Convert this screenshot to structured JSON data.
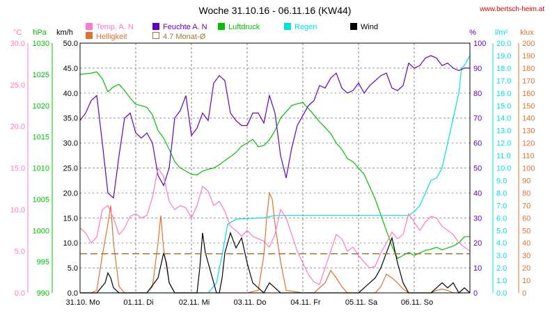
{
  "chart_data": {
    "type": "line",
    "title": "Woche 31.10.16 - 06.11.16 (KW44)",
    "source_label": "www.bertsch-heim.at",
    "x_range_days": [
      0,
      7
    ],
    "x_tick_labels": [
      "31.10. Mo",
      "01.11. Di",
      "02.11. Mi",
      "03.11. Do",
      "04.11. Fr",
      "05.11. Sa",
      "06.11. So"
    ],
    "grid": true,
    "axes": {
      "temperature": {
        "unit": "°C",
        "min": 0,
        "max": 30,
        "ticks": [
          "0.0",
          "5.0",
          "10.0",
          "15.0",
          "20.0",
          "25.0",
          "30.0"
        ],
        "color": "#ff78c8"
      },
      "pressure": {
        "unit": "hPa",
        "min": 990,
        "max": 1030,
        "ticks": [
          "990",
          "995",
          "1000",
          "1005",
          "1010",
          "1015",
          "1020",
          "1025",
          "1030"
        ],
        "color": "#00c000"
      },
      "wind": {
        "unit": "km/h",
        "min": 0,
        "max": 50,
        "ticks": [
          "0.0",
          "5.0",
          "10.0",
          "15.0",
          "20.0",
          "25.0",
          "30.0",
          "35.0",
          "40.0",
          "45.0",
          "50.0"
        ],
        "color": "#000000"
      },
      "humidity": {
        "unit": "%",
        "min": 0,
        "max": 100,
        "ticks": [
          "0",
          "10",
          "20",
          "30",
          "40",
          "50",
          "60",
          "70",
          "80",
          "90",
          "100"
        ],
        "color": "#6000c0"
      },
      "rain": {
        "unit": "l/m²",
        "min": 0,
        "max": 20,
        "ticks": [
          "0.0",
          "1.0",
          "2.0",
          "3.0",
          "4.0",
          "5.0",
          "6.0",
          "7.0",
          "8.0",
          "9.0",
          "10.0",
          "11.0",
          "12.0",
          "13.0",
          "14.0",
          "15.0",
          "16.0",
          "17.0",
          "18.0",
          "19.0",
          "20.0"
        ],
        "color": "#00e0e0"
      },
      "light": {
        "unit": "klux",
        "min": 0,
        "max": 200,
        "ticks": [
          "0",
          "10",
          "20",
          "30",
          "40",
          "50",
          "60",
          "70",
          "80",
          "90",
          "100",
          "110",
          "120",
          "130",
          "140",
          "150",
          "160",
          "170",
          "180",
          "190",
          "200"
        ],
        "color": "#e07030"
      }
    },
    "legend": [
      {
        "label": "Temp. A. N",
        "color": "#ff78c8"
      },
      {
        "label": "Helligkeit",
        "color": "#e07030"
      },
      {
        "label": "Feuchte A. N",
        "color": "#6000c0"
      },
      {
        "label": "4.7 Monat-Ø",
        "color": "#a07830"
      },
      {
        "label": "Luftdruck",
        "color": "#00c000"
      },
      {
        "label": "Regen",
        "color": "#00e0e0"
      },
      {
        "label": "Wind",
        "color": "#000000"
      }
    ],
    "series": [
      {
        "name": "Temp. A. N",
        "axis": "temperature",
        "color": "#ff78c8",
        "x": [
          0,
          0.1,
          0.2,
          0.3,
          0.4,
          0.5,
          0.6,
          0.7,
          0.8,
          0.9,
          1.0,
          1.1,
          1.2,
          1.3,
          1.4,
          1.5,
          1.6,
          1.7,
          1.8,
          1.9,
          2.0,
          2.1,
          2.2,
          2.3,
          2.4,
          2.5,
          2.6,
          2.7,
          2.8,
          2.9,
          3.0,
          3.1,
          3.2,
          3.3,
          3.4,
          3.5,
          3.6,
          3.7,
          3.8,
          3.9,
          4.0,
          4.1,
          4.2,
          4.3,
          4.4,
          4.5,
          4.6,
          4.7,
          4.8,
          4.9,
          5.0,
          5.1,
          5.2,
          5.3,
          5.4,
          5.5,
          5.6,
          5.7,
          5.8,
          5.9,
          6.0,
          6.1,
          6.2,
          6.3,
          6.4,
          6.5,
          6.6,
          6.7,
          6.8,
          6.9,
          7.0
        ],
        "y": [
          7.8,
          7.2,
          6.0,
          6.7,
          10.0,
          10.5,
          9.0,
          7.0,
          7.8,
          9.2,
          9.5,
          9.0,
          9.3,
          11.5,
          15.0,
          14.0,
          11.0,
          10.0,
          10.5,
          10.2,
          9.0,
          10.5,
          12.8,
          12.2,
          10.5,
          11.0,
          9.8,
          8.0,
          7.5,
          6.8,
          7.5,
          6.8,
          6.5,
          6.2,
          5.5,
          7.0,
          10.0,
          9.0,
          7.0,
          5.0,
          3.6,
          2.2,
          1.3,
          1.0,
          3.0,
          5.0,
          7.0,
          6.5,
          5.0,
          5.5,
          4.5,
          3.7,
          3.0,
          3.2,
          4.8,
          6.0,
          7.3,
          6.5,
          7.0,
          9.5,
          8.5,
          7.5,
          8.5,
          9.2,
          9.0,
          8.0,
          7.5,
          7.0,
          6.0,
          5.5,
          5.0
        ]
      },
      {
        "name": "Feuchte A. N",
        "axis": "humidity",
        "color": "#6000c0",
        "x": [
          0,
          0.1,
          0.2,
          0.3,
          0.4,
          0.5,
          0.6,
          0.7,
          0.8,
          0.9,
          1.0,
          1.1,
          1.2,
          1.3,
          1.4,
          1.5,
          1.6,
          1.7,
          1.8,
          1.9,
          2.0,
          2.1,
          2.2,
          2.3,
          2.4,
          2.5,
          2.6,
          2.7,
          2.8,
          2.9,
          3.0,
          3.1,
          3.2,
          3.3,
          3.4,
          3.5,
          3.6,
          3.7,
          3.8,
          3.9,
          4.0,
          4.1,
          4.2,
          4.3,
          4.4,
          4.5,
          4.6,
          4.7,
          4.8,
          4.9,
          5.0,
          5.1,
          5.2,
          5.3,
          5.4,
          5.5,
          5.6,
          5.7,
          5.8,
          5.9,
          6.0,
          6.1,
          6.2,
          6.3,
          6.4,
          6.5,
          6.6,
          6.7,
          6.8,
          6.9,
          7.0
        ],
        "y": [
          69,
          72,
          77,
          79,
          60,
          40,
          38,
          55,
          70,
          72,
          64,
          62,
          64,
          60,
          47,
          43,
          50,
          70,
          73,
          79,
          63,
          66,
          72,
          69,
          84,
          87,
          85,
          72,
          69,
          67,
          67,
          72,
          72,
          68,
          79,
          72,
          55,
          46,
          58,
          67,
          71,
          75,
          77,
          83,
          82,
          86,
          88,
          82,
          80,
          81,
          84,
          80,
          83,
          85,
          87,
          88,
          82,
          81,
          83,
          92,
          90,
          91,
          94,
          95,
          94,
          91,
          92,
          90,
          89,
          90,
          90
        ]
      },
      {
        "name": "Luftdruck",
        "axis": "pressure",
        "color": "#00c000",
        "x": [
          0,
          0.1,
          0.2,
          0.3,
          0.4,
          0.5,
          0.6,
          0.7,
          0.8,
          0.9,
          1.0,
          1.1,
          1.2,
          1.3,
          1.4,
          1.5,
          1.6,
          1.7,
          1.8,
          1.9,
          2.0,
          2.1,
          2.2,
          2.3,
          2.4,
          2.5,
          2.6,
          2.7,
          2.8,
          2.9,
          3.0,
          3.1,
          3.2,
          3.3,
          3.4,
          3.5,
          3.6,
          3.7,
          3.8,
          3.9,
          4.0,
          4.1,
          4.2,
          4.3,
          4.4,
          4.5,
          4.6,
          4.7,
          4.8,
          4.9,
          5.0,
          5.1,
          5.2,
          5.3,
          5.4,
          5.5,
          5.6,
          5.7,
          5.8,
          5.9,
          6.0,
          6.1,
          6.2,
          6.3,
          6.4,
          6.5,
          6.6,
          6.7,
          6.8,
          6.9,
          7.0
        ],
        "y": [
          1025.0,
          1025.1,
          1025.2,
          1025.4,
          1024.3,
          1022.2,
          1023.0,
          1023.4,
          1022.4,
          1021.2,
          1020.2,
          1020.0,
          1019.7,
          1018.5,
          1016.0,
          1014.8,
          1013.0,
          1011.0,
          1010.0,
          1009.5,
          1009.0,
          1008.9,
          1009.5,
          1009.8,
          1010.0,
          1010.5,
          1011.2,
          1011.8,
          1012.5,
          1013.5,
          1014.0,
          1014.6,
          1013.4,
          1013.6,
          1014.5,
          1016.0,
          1018.0,
          1019.0,
          1020.0,
          1020.3,
          1020.5,
          1019.5,
          1018.5,
          1017.4,
          1016.5,
          1015.5,
          1014.0,
          1013.0,
          1011.5,
          1011.0,
          1010.0,
          1009.0,
          1007.0,
          1005.0,
          1002.5,
          1000.0,
          997.5,
          995.5,
          996.0,
          996.5,
          996.0,
          996.4,
          996.8,
          997.0,
          997.3,
          996.9,
          997.2,
          997.5,
          998.0,
          999.0,
          999.0
        ]
      },
      {
        "name": "Regen",
        "axis": "rain",
        "color": "#00e0e0",
        "x": [
          0,
          2.3,
          2.45,
          2.55,
          2.65,
          2.8,
          3.0,
          3.3,
          3.5,
          4.0,
          4.5,
          5.0,
          5.5,
          5.9,
          6.0,
          6.1,
          6.2,
          6.3,
          6.4,
          6.5,
          6.6,
          6.7,
          6.8,
          6.85,
          6.9,
          7.0
        ],
        "y": [
          0,
          0,
          0.8,
          3.0,
          5.5,
          5.9,
          5.95,
          6.0,
          6.2,
          6.2,
          6.2,
          6.2,
          6.2,
          6.2,
          6.5,
          7.0,
          8.0,
          9.0,
          9.2,
          10.0,
          12.0,
          14.0,
          16.0,
          18.0,
          18.2,
          19.0
        ]
      },
      {
        "name": "Helligkeit",
        "axis": "light",
        "color": "#e07030",
        "x": [
          0,
          0.1,
          0.2,
          0.3,
          0.4,
          0.5,
          0.55,
          0.6,
          0.7,
          0.8,
          1.0,
          1.2,
          1.3,
          1.4,
          1.45,
          1.5,
          1.6,
          1.7,
          2.0,
          3.0,
          3.2,
          3.3,
          3.35,
          3.4,
          3.45,
          3.5,
          3.6,
          3.7,
          4.0,
          4.2,
          4.4,
          4.5,
          4.6,
          4.7,
          4.8,
          5.0,
          5.3,
          5.4,
          5.5,
          5.6,
          5.7,
          5.8,
          5.9,
          6.0,
          6.3,
          6.4,
          6.5,
          6.6,
          6.7,
          7.0
        ],
        "y": [
          0,
          0,
          0,
          2,
          30,
          55,
          70,
          40,
          5,
          0,
          0,
          0,
          5,
          40,
          62,
          35,
          8,
          0,
          0,
          0,
          2,
          30,
          60,
          80,
          75,
          55,
          25,
          2,
          0,
          0,
          8,
          18,
          12,
          5,
          0,
          0,
          0,
          5,
          15,
          12,
          8,
          3,
          0,
          0,
          0,
          2,
          3,
          2,
          0,
          0
        ]
      },
      {
        "name": "Wind",
        "axis": "wind",
        "color": "#000000",
        "x": [
          0,
          0.3,
          0.45,
          0.5,
          0.55,
          0.6,
          0.7,
          0.8,
          1.0,
          1.2,
          1.4,
          1.5,
          1.55,
          1.6,
          1.7,
          1.8,
          2.0,
          2.1,
          2.15,
          2.2,
          2.25,
          2.3,
          2.4,
          2.45,
          2.5,
          2.55,
          2.6,
          2.7,
          2.8,
          2.9,
          3.0,
          3.1,
          3.2,
          3.3,
          3.4,
          3.5,
          3.6,
          3.7,
          3.8,
          3.9,
          4.0,
          4.1,
          4.2,
          4.3,
          4.4,
          4.5,
          4.6,
          4.7,
          4.8,
          4.9,
          5.0,
          5.1,
          5.2,
          5.3,
          5.4,
          5.5,
          5.6,
          5.7,
          5.8,
          5.9,
          6.0,
          6.1,
          6.2,
          6.3,
          6.4,
          6.5,
          6.6,
          6.7,
          6.8,
          6.9,
          7.0
        ],
        "y": [
          0,
          0,
          2,
          4,
          3,
          1,
          0,
          0,
          0,
          0,
          3,
          8,
          6,
          2,
          0,
          0,
          0,
          0,
          5,
          12,
          8,
          6,
          2,
          0,
          0,
          3,
          8,
          12,
          9,
          11,
          6,
          2,
          1,
          0,
          2,
          1,
          0,
          0,
          0,
          0,
          0,
          0,
          0,
          0,
          0,
          0,
          0,
          0,
          0,
          0,
          0,
          1,
          2,
          3,
          5,
          8,
          11,
          6,
          2,
          0,
          0,
          0,
          0,
          0,
          1,
          2,
          1,
          2,
          0,
          1,
          0
        ]
      },
      {
        "name": "4.7 Monat-Ø",
        "axis": "temperature",
        "color": "#a07830",
        "x": [
          0,
          7
        ],
        "y": [
          4.7,
          4.7
        ]
      }
    ]
  }
}
